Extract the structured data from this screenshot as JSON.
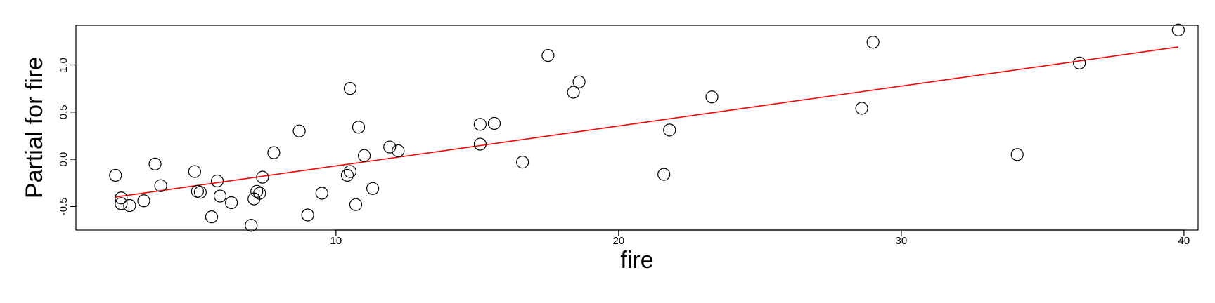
{
  "chart_data": {
    "type": "scatter",
    "title": "",
    "xlabel": "fire",
    "ylabel": "Partial for fire",
    "xlim": [
      0.8,
      40.5
    ],
    "ylim": [
      -0.75,
      1.42
    ],
    "x_ticks": [
      10,
      20,
      30,
      40
    ],
    "x_tick_labels": [
      "10",
      "20",
      "30",
      "40"
    ],
    "y_ticks": [
      -0.5,
      0.0,
      0.5,
      1.0
    ],
    "y_tick_labels": [
      "-0.5",
      "0.0",
      "0.5",
      "1.0"
    ],
    "grid": false,
    "legend": "none",
    "point_color": "#000000",
    "line_color": "#ff0000",
    "points": [
      {
        "x": 2.2,
        "y": -0.17
      },
      {
        "x": 2.4,
        "y": -0.41
      },
      {
        "x": 2.4,
        "y": -0.47
      },
      {
        "x": 2.7,
        "y": -0.49
      },
      {
        "x": 3.2,
        "y": -0.44
      },
      {
        "x": 3.6,
        "y": -0.05
      },
      {
        "x": 3.8,
        "y": -0.28
      },
      {
        "x": 5.0,
        "y": -0.13
      },
      {
        "x": 5.1,
        "y": -0.34
      },
      {
        "x": 5.2,
        "y": -0.35
      },
      {
        "x": 5.6,
        "y": -0.61
      },
      {
        "x": 5.8,
        "y": -0.23
      },
      {
        "x": 5.9,
        "y": -0.39
      },
      {
        "x": 6.3,
        "y": -0.46
      },
      {
        "x": 7.0,
        "y": -0.7
      },
      {
        "x": 7.1,
        "y": -0.42
      },
      {
        "x": 7.2,
        "y": -0.34
      },
      {
        "x": 7.3,
        "y": -0.36
      },
      {
        "x": 7.4,
        "y": -0.19
      },
      {
        "x": 7.8,
        "y": 0.07
      },
      {
        "x": 8.7,
        "y": 0.3
      },
      {
        "x": 9.0,
        "y": -0.59
      },
      {
        "x": 9.5,
        "y": -0.36
      },
      {
        "x": 10.4,
        "y": -0.17
      },
      {
        "x": 10.5,
        "y": -0.13
      },
      {
        "x": 10.5,
        "y": 0.75
      },
      {
        "x": 10.7,
        "y": -0.48
      },
      {
        "x": 10.8,
        "y": 0.34
      },
      {
        "x": 11.0,
        "y": 0.04
      },
      {
        "x": 11.3,
        "y": -0.31
      },
      {
        "x": 11.9,
        "y": 0.13
      },
      {
        "x": 12.2,
        "y": 0.09
      },
      {
        "x": 15.1,
        "y": 0.37
      },
      {
        "x": 15.1,
        "y": 0.16
      },
      {
        "x": 15.6,
        "y": 0.38
      },
      {
        "x": 16.6,
        "y": -0.03
      },
      {
        "x": 17.5,
        "y": 1.1
      },
      {
        "x": 18.4,
        "y": 0.71
      },
      {
        "x": 18.6,
        "y": 0.82
      },
      {
        "x": 21.6,
        "y": -0.16
      },
      {
        "x": 21.8,
        "y": 0.31
      },
      {
        "x": 23.3,
        "y": 0.66
      },
      {
        "x": 28.6,
        "y": 0.54
      },
      {
        "x": 29.0,
        "y": 1.24
      },
      {
        "x": 34.1,
        "y": 0.05
      },
      {
        "x": 36.3,
        "y": 1.02
      },
      {
        "x": 39.8,
        "y": 1.37
      }
    ],
    "fit_line": {
      "x": [
        2.2,
        39.8
      ],
      "y": [
        -0.4,
        1.19
      ]
    }
  }
}
